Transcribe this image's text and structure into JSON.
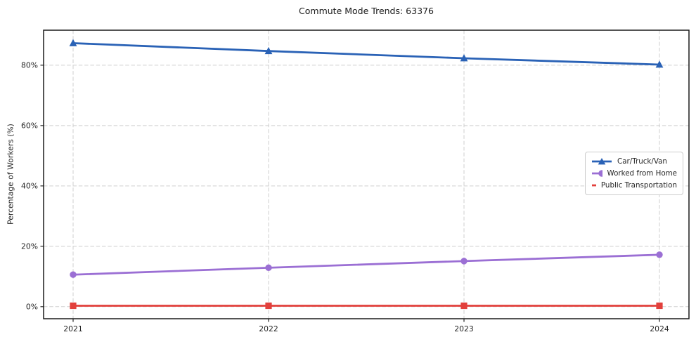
{
  "figure": {
    "title": "Commute Mode Trends: 63376",
    "ylabel": "Percentage of Workers (%)"
  },
  "chart_data": {
    "type": "line",
    "title": "Commute Mode Trends: 63376",
    "xlabel": "",
    "ylabel": "Percentage of Workers (%)",
    "categories": [
      "2021",
      "2022",
      "2023",
      "2024"
    ],
    "series": [
      {
        "name": "Car/Truck/Van",
        "color": "#2a62b6",
        "marker": "triangle-up",
        "values": [
          87.3,
          84.7,
          82.3,
          80.2
        ]
      },
      {
        "name": "Worked from Home",
        "color": "#9b6fd4",
        "marker": "circle",
        "values": [
          10.6,
          12.9,
          15.1,
          17.2
        ]
      },
      {
        "name": "Public Transportation",
        "color": "#e2403c",
        "marker": "square",
        "values": [
          0.3,
          0.3,
          0.3,
          0.3
        ]
      }
    ],
    "yticks": [
      0,
      20,
      40,
      60,
      80
    ],
    "ytick_labels": [
      "0%",
      "20%",
      "40%",
      "60%",
      "80%"
    ],
    "ylim": [
      -4.0,
      91.6
    ],
    "grid": true,
    "grid_style": "dashed",
    "legend_position": "center right",
    "colors": {
      "grid": "#cfcfcf",
      "frame": "#1b1b1b",
      "text": "#262626",
      "background": "#ffffff"
    }
  }
}
